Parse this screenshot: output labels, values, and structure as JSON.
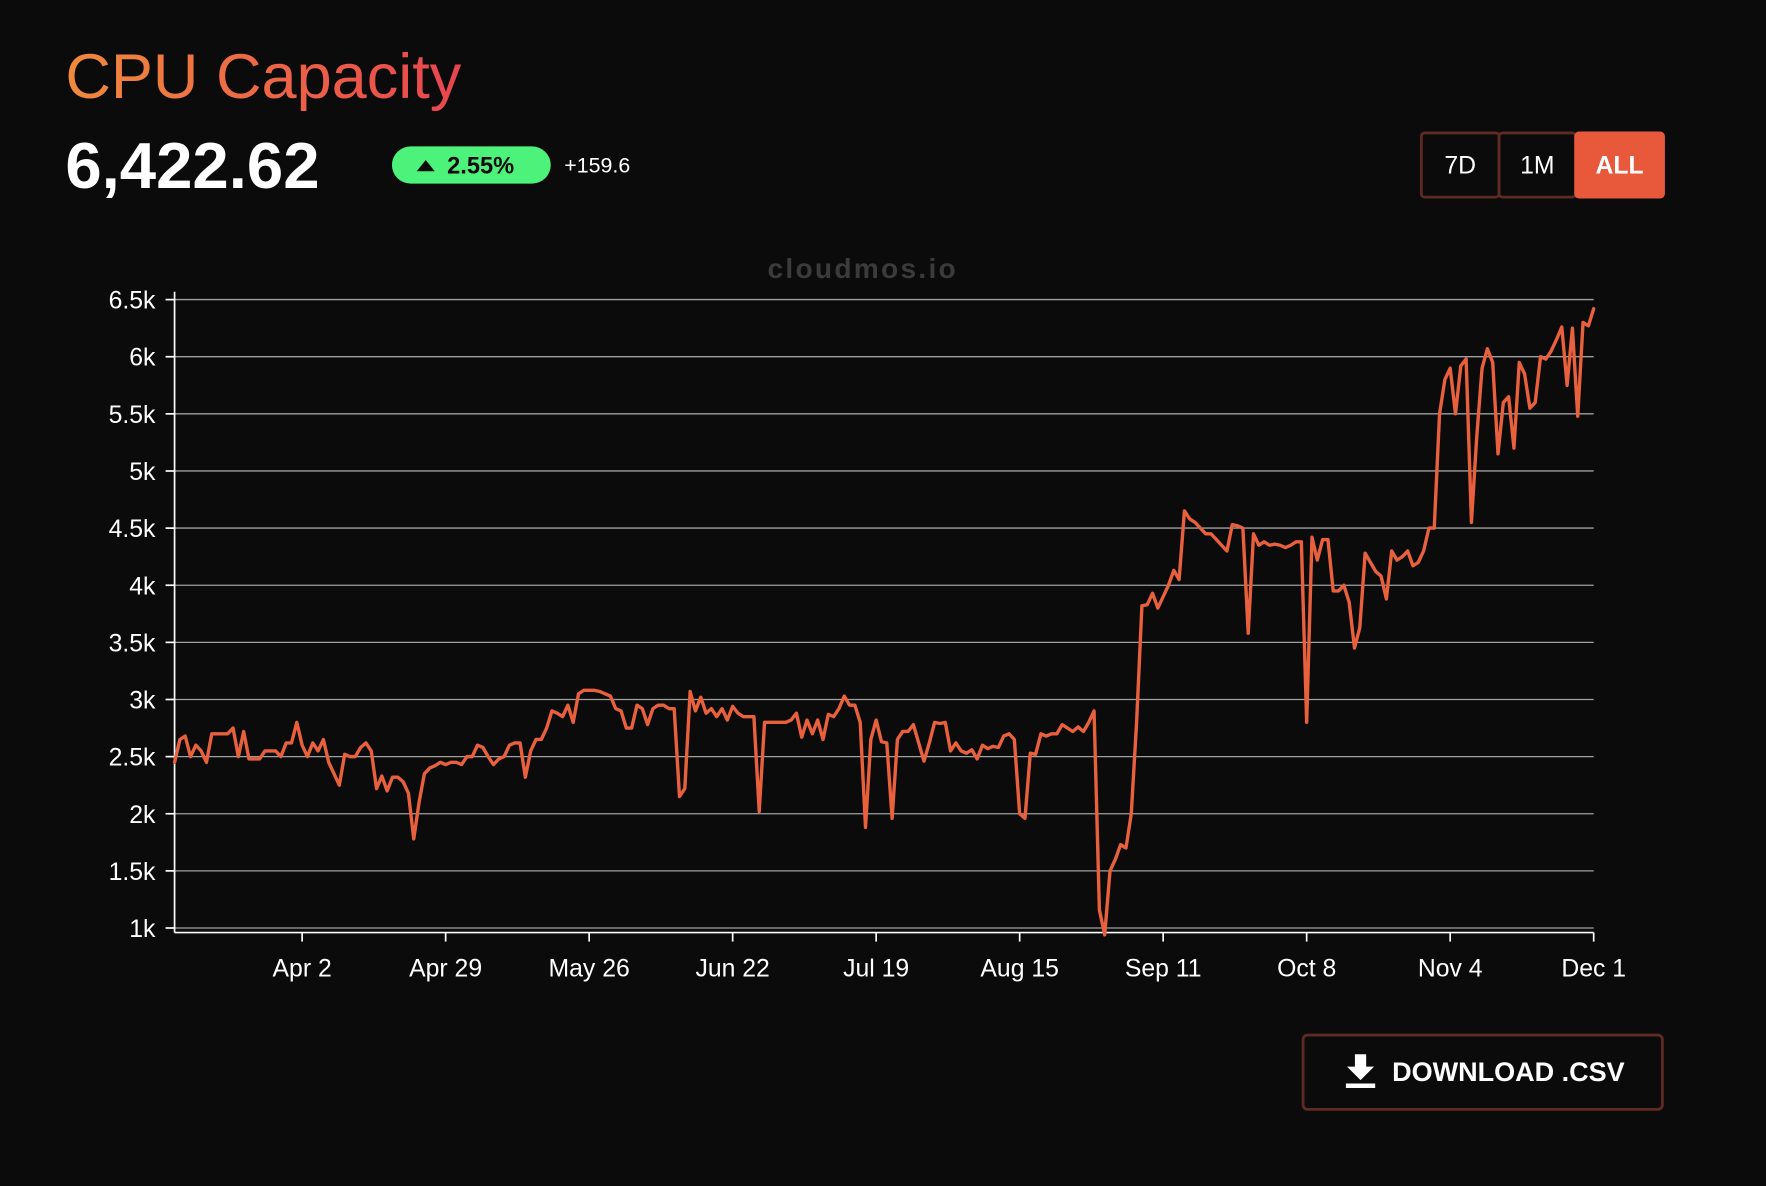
{
  "header": {
    "title": "CPU Capacity",
    "value": "6,422.62",
    "change_percent": "2.55%",
    "change_abs": "+159.6"
  },
  "range_buttons": [
    "7D",
    "1M",
    "ALL"
  ],
  "active_range": "ALL",
  "watermark": "cloudmos.io",
  "download_label": "DOWNLOAD .CSV",
  "chart_data": {
    "type": "line",
    "color": "#e8603c",
    "grid": true,
    "ylim": [
      960,
      6500
    ],
    "yticks": [
      {
        "value": 1000,
        "label": "1k"
      },
      {
        "value": 1500,
        "label": "1.5k"
      },
      {
        "value": 2000,
        "label": "2k"
      },
      {
        "value": 2500,
        "label": "2.5k"
      },
      {
        "value": 3000,
        "label": "3k"
      },
      {
        "value": 3500,
        "label": "3.5k"
      },
      {
        "value": 4000,
        "label": "4k"
      },
      {
        "value": 4500,
        "label": "4.5k"
      },
      {
        "value": 5000,
        "label": "5k"
      },
      {
        "value": 5500,
        "label": "5.5k"
      },
      {
        "value": 6000,
        "label": "6k"
      },
      {
        "value": 6500,
        "label": "6.5k"
      }
    ],
    "categories": [
      null,
      null,
      null,
      null,
      null,
      null,
      null,
      null,
      null,
      null,
      null,
      null,
      null,
      null,
      null,
      null,
      null,
      null,
      null,
      null,
      null,
      null,
      null,
      null,
      "Apr 2",
      null,
      null,
      null,
      null,
      null,
      null,
      null,
      null,
      null,
      null,
      null,
      null,
      null,
      null,
      null,
      null,
      null,
      null,
      null,
      null,
      null,
      null,
      null,
      null,
      null,
      null,
      "Apr 29",
      null,
      null,
      null,
      null,
      null,
      null,
      null,
      null,
      null,
      null,
      null,
      null,
      null,
      null,
      null,
      null,
      null,
      null,
      null,
      null,
      null,
      null,
      null,
      null,
      null,
      null,
      "May 26",
      null,
      null,
      null,
      null,
      null,
      null,
      null,
      null,
      null,
      null,
      null,
      null,
      null,
      null,
      null,
      null,
      null,
      null,
      null,
      null,
      null,
      null,
      null,
      null,
      null,
      null,
      "Jun 22",
      null,
      null,
      null,
      null,
      null,
      null,
      null,
      null,
      null,
      null,
      null,
      null,
      null,
      null,
      null,
      null,
      null,
      null,
      null,
      null,
      null,
      null,
      null,
      null,
      null,
      null,
      "Jul 19",
      null,
      null,
      null,
      null,
      null,
      null,
      null,
      null,
      null,
      null,
      null,
      null,
      null,
      null,
      null,
      null,
      null,
      null,
      null,
      null,
      null,
      null,
      null,
      null,
      null,
      null,
      "Aug 15",
      null,
      null,
      null,
      null,
      null,
      null,
      null,
      null,
      null,
      null,
      null,
      null,
      null,
      null,
      null,
      null,
      null,
      null,
      null,
      null,
      null,
      null,
      null,
      null,
      null,
      null,
      "Sep 11",
      null,
      null,
      null,
      null,
      null,
      null,
      null,
      null,
      null,
      null,
      null,
      null,
      null,
      null,
      null,
      null,
      null,
      null,
      null,
      null,
      null,
      null,
      null,
      null,
      null,
      null,
      "Oct 8",
      null,
      null,
      null,
      null,
      null,
      null,
      null,
      null,
      null,
      null,
      null,
      null,
      null,
      null,
      null,
      null,
      null,
      null,
      null,
      null,
      null,
      null,
      null,
      null,
      null,
      null,
      "Nov 4",
      null,
      null,
      null,
      null,
      null,
      null,
      null,
      null,
      null,
      null,
      null,
      null,
      null,
      null,
      null,
      null,
      null,
      null,
      null,
      null,
      null,
      null,
      null,
      null,
      null,
      null,
      "Dec 1"
    ],
    "values": [
      2450,
      2650,
      2680,
      2500,
      2600,
      2550,
      2450,
      2700,
      2700,
      2700,
      2700,
      2750,
      2500,
      2720,
      2480,
      2480,
      2480,
      2550,
      2550,
      2550,
      2500,
      2620,
      2620,
      2800,
      2600,
      2500,
      2620,
      2550,
      2650,
      2450,
      2350,
      2250,
      2520,
      2500,
      2500,
      2580,
      2620,
      2550,
      2220,
      2330,
      2200,
      2320,
      2320,
      2280,
      2180,
      1780,
      2100,
      2350,
      2400,
      2420,
      2450,
      2430,
      2450,
      2450,
      2430,
      2500,
      2500,
      2600,
      2580,
      2500,
      2430,
      2480,
      2500,
      2600,
      2620,
      2620,
      2320,
      2550,
      2650,
      2650,
      2750,
      2900,
      2880,
      2850,
      2950,
      2800,
      3050,
      3080,
      3080,
      3080,
      3070,
      3050,
      3030,
      2920,
      2900,
      2750,
      2750,
      2950,
      2920,
      2780,
      2920,
      2950,
      2950,
      2920,
      2920,
      2150,
      2220,
      3070,
      2900,
      3020,
      2880,
      2920,
      2850,
      2920,
      2820,
      2940,
      2880,
      2850,
      2850,
      2850,
      2020,
      2800,
      2800,
      2800,
      2800,
      2800,
      2820,
      2880,
      2670,
      2820,
      2700,
      2820,
      2650,
      2870,
      2850,
      2920,
      3030,
      2950,
      2950,
      2800,
      1880,
      2650,
      2820,
      2630,
      2620,
      1960,
      2650,
      2720,
      2720,
      2780,
      2620,
      2460,
      2620,
      2800,
      2790,
      2800,
      2550,
      2620,
      2550,
      2530,
      2560,
      2480,
      2600,
      2570,
      2590,
      2580,
      2680,
      2700,
      2650,
      2000,
      1960,
      2530,
      2520,
      2700,
      2680,
      2700,
      2700,
      2780,
      2750,
      2720,
      2760,
      2720,
      2800,
      2900,
      1160,
      940,
      1500,
      1600,
      1730,
      1700,
      2000,
      2800,
      3820,
      3830,
      3930,
      3800,
      3900,
      4000,
      4130,
      4050,
      4650,
      4580,
      4550,
      4500,
      4450,
      4450,
      4400,
      4350,
      4300,
      4530,
      4520,
      4500,
      3580,
      4450,
      4350,
      4380,
      4350,
      4360,
      4350,
      4330,
      4350,
      4380,
      4380,
      2800,
      4420,
      4220,
      4400,
      4400,
      3950,
      3950,
      4000,
      3850,
      3450,
      3630,
      4280,
      4200,
      4120,
      4080,
      3880,
      4300,
      4220,
      4250,
      4300,
      4170,
      4200,
      4300,
      4500,
      4500,
      5500,
      5800,
      5900,
      5500,
      5920,
      5980,
      4550,
      5300,
      5900,
      6070,
      5950,
      5150,
      5600,
      5650,
      5200,
      5950,
      5850,
      5550,
      5600,
      6000,
      5980,
      6050,
      6150,
      6260,
      5750,
      6250,
      5480,
      6300,
      6270,
      6420
    ]
  }
}
